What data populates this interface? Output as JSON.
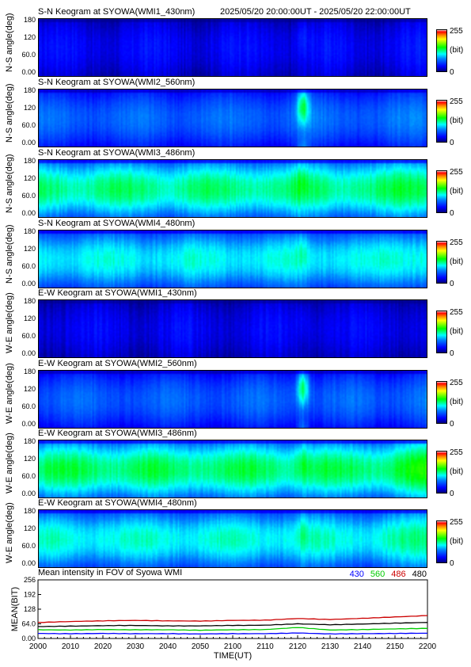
{
  "header": {
    "time_range": "2025/05/20 20:00:00UT - 2025/05/20 22:00:00UT"
  },
  "keograms": [
    {
      "title": "S-N Keogram at SYOWA(WMI1_430nm)",
      "ylabel": "N-S angle(deg)",
      "level": 0.12,
      "aurora_peak": 0.06
    },
    {
      "title": "S-N Keogram at SYOWA(WMI2_560nm)",
      "ylabel": "N-S angle(deg)",
      "level": 0.26,
      "aurora_peak": 0.3
    },
    {
      "title": "S-N Keogram at SYOWA(WMI3_486nm)",
      "ylabel": "N-S angle(deg)",
      "level": 0.5,
      "aurora_peak": 0.06
    },
    {
      "title": "S-N Keogram at SYOWA(WMI4_480nm)",
      "ylabel": "N-S angle(deg)",
      "level": 0.42,
      "aurora_peak": 0.06
    },
    {
      "title": "E-W Keogram at SYOWA(WMI1_430nm)",
      "ylabel": "W-E angle(deg)",
      "level": 0.11,
      "aurora_peak": 0.04
    },
    {
      "title": "E-W Keogram at SYOWA(WMI2_560nm)",
      "ylabel": "W-E angle(deg)",
      "level": 0.25,
      "aurora_peak": 0.32
    },
    {
      "title": "E-W Keogram at SYOWA(WMI3_486nm)",
      "ylabel": "W-E angle(deg)",
      "level": 0.52,
      "aurora_peak": 0.06
    },
    {
      "title": "E-W Keogram at SYOWA(WMI4_480nm)",
      "ylabel": "W-E angle(deg)",
      "level": 0.44,
      "aurora_peak": 0.06
    }
  ],
  "keogram_yticks": [
    "180",
    "120",
    "60.0",
    "0.00"
  ],
  "colorbar": {
    "max_label": "255",
    "unit_label": "(bit)",
    "min_label": "0"
  },
  "chart_data": {
    "type": "line",
    "title": "Mean intensity in FOV of Syowa WMI",
    "xlabel": "TIME(UT)",
    "ylabel": "MEAN(BIT)",
    "xlim": [
      2000,
      2200
    ],
    "ylim": [
      0,
      256
    ],
    "x_ticks": [
      "2000",
      "2010",
      "2020",
      "2030",
      "2040",
      "2050",
      "2100",
      "2110",
      "2120",
      "2130",
      "2140",
      "2150",
      "2200"
    ],
    "y_ticks": [
      "256",
      "192",
      "128",
      "64.0",
      "0.00"
    ],
    "x_minutes": [
      0,
      10,
      20,
      30,
      40,
      50,
      60,
      70,
      80,
      90,
      100,
      110,
      120
    ],
    "series": [
      {
        "name": "430",
        "color": "#0000ff",
        "values": [
          22,
          21,
          22,
          21,
          21,
          20,
          21,
          21,
          24,
          20,
          21,
          22,
          23
        ]
      },
      {
        "name": "560",
        "color": "#00cc00",
        "values": [
          38,
          37,
          39,
          38,
          38,
          36,
          38,
          39,
          48,
          37,
          39,
          42,
          44
        ]
      },
      {
        "name": "486",
        "color": "#cc0000",
        "values": [
          70,
          74,
          77,
          79,
          77,
          76,
          79,
          80,
          87,
          83,
          88,
          94,
          100
        ]
      },
      {
        "name": "480",
        "color": "#000000",
        "values": [
          52,
          54,
          56,
          57,
          55,
          55,
          57,
          58,
          64,
          60,
          63,
          67,
          70
        ]
      }
    ]
  }
}
